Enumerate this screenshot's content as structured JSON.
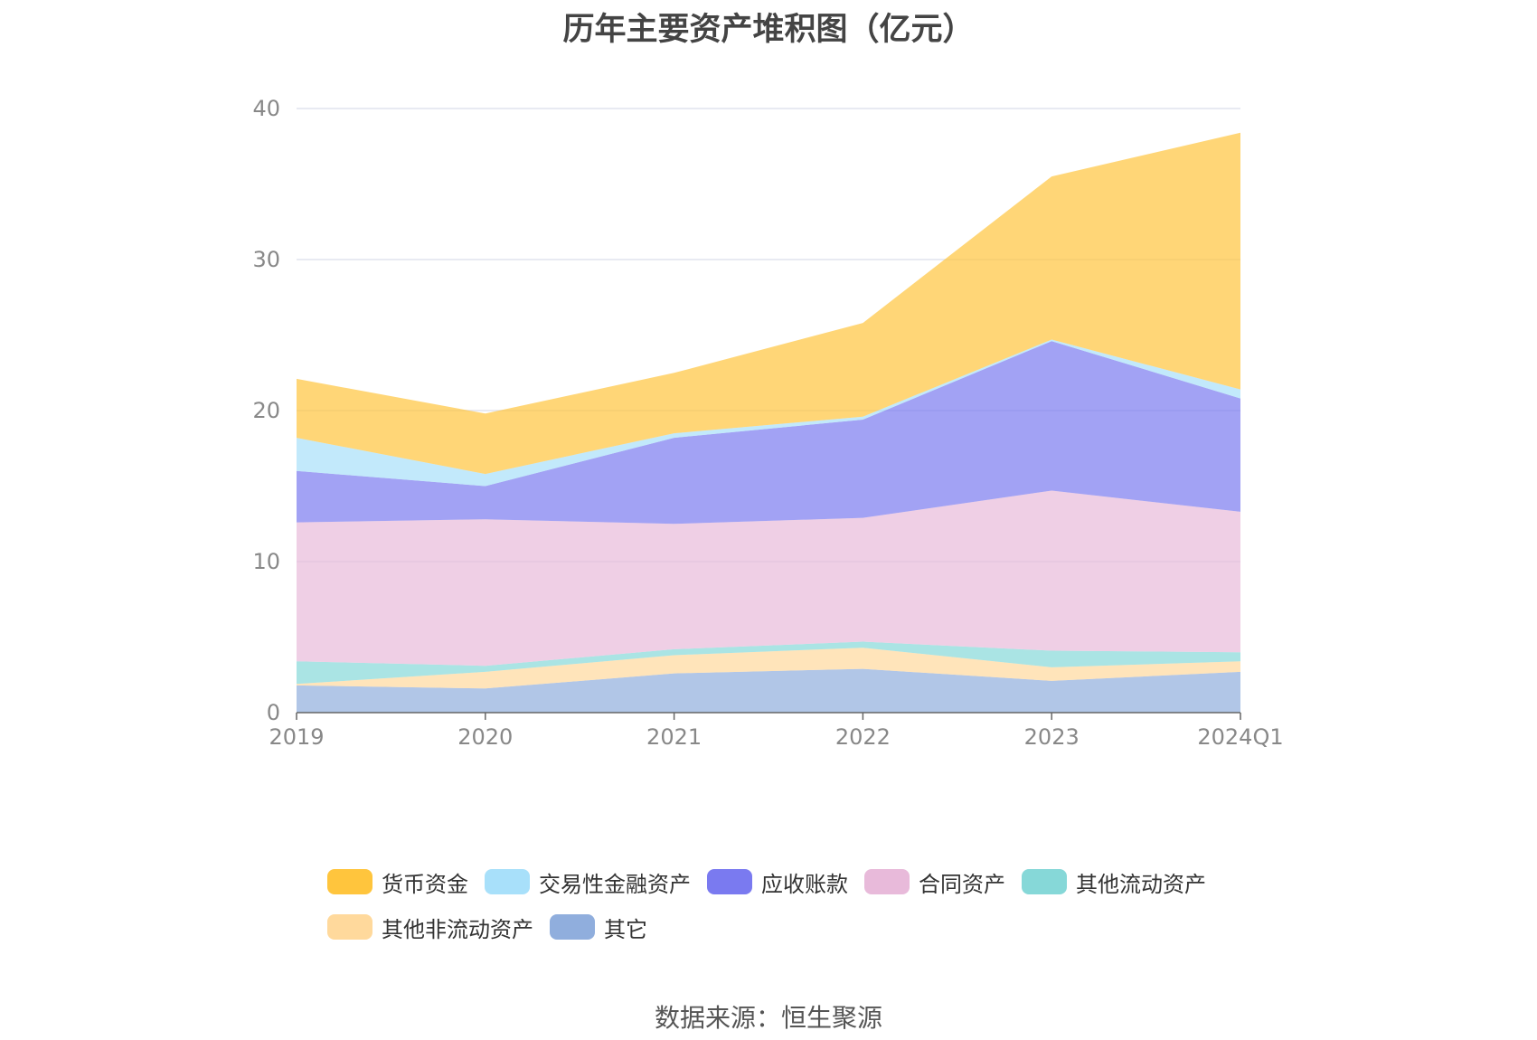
{
  "title": "历年主要资产堆积图（亿元）",
  "source": "数据来源：恒生聚源",
  "legend": [
    {
      "label": "货币资金",
      "color": "#FFC53D"
    },
    {
      "label": "交易性金融资产",
      "color": "#A8E0FA"
    },
    {
      "label": "应收账款",
      "color": "#7A7AF0"
    },
    {
      "label": "合同资产",
      "color": "#E8BADA"
    },
    {
      "label": "其他流动资产",
      "color": "#86D8D8"
    },
    {
      "label": "其他非流动资产",
      "color": "#FFD99C"
    },
    {
      "label": "其它",
      "color": "#90AEDD"
    }
  ],
  "chart_data": {
    "type": "area",
    "stacked": true,
    "title": "历年主要资产堆积图（亿元）",
    "categories": [
      "2019",
      "2020",
      "2021",
      "2022",
      "2023",
      "2024Q1"
    ],
    "ylim": [
      0,
      40
    ],
    "yticks": [
      0,
      10,
      20,
      30,
      40
    ],
    "grid": true,
    "legend_position": "bottom",
    "series": [
      {
        "name": "其它",
        "color": "#90AEDD",
        "values": [
          1.8,
          1.6,
          2.6,
          2.9,
          2.1,
          2.7
        ]
      },
      {
        "name": "其他非流动资产",
        "color": "#FFD99C",
        "values": [
          0.1,
          1.1,
          1.2,
          1.4,
          0.9,
          0.7
        ]
      },
      {
        "name": "其他流动资产",
        "color": "#86D8D8",
        "values": [
          1.5,
          0.4,
          0.4,
          0.4,
          1.1,
          0.6
        ]
      },
      {
        "name": "合同资产",
        "color": "#E8BADA",
        "values": [
          9.2,
          9.7,
          8.3,
          8.2,
          10.6,
          9.3
        ]
      },
      {
        "name": "应收账款",
        "color": "#7A7AF0",
        "values": [
          3.4,
          2.2,
          5.7,
          6.5,
          9.9,
          7.5
        ]
      },
      {
        "name": "交易性金融资产",
        "color": "#A8E0FA",
        "values": [
          2.2,
          0.8,
          0.3,
          0.2,
          0.1,
          0.6
        ]
      },
      {
        "name": "货币资金",
        "color": "#FFC53D",
        "values": [
          3.9,
          4.0,
          4.0,
          6.2,
          10.8,
          17.0
        ]
      }
    ]
  }
}
